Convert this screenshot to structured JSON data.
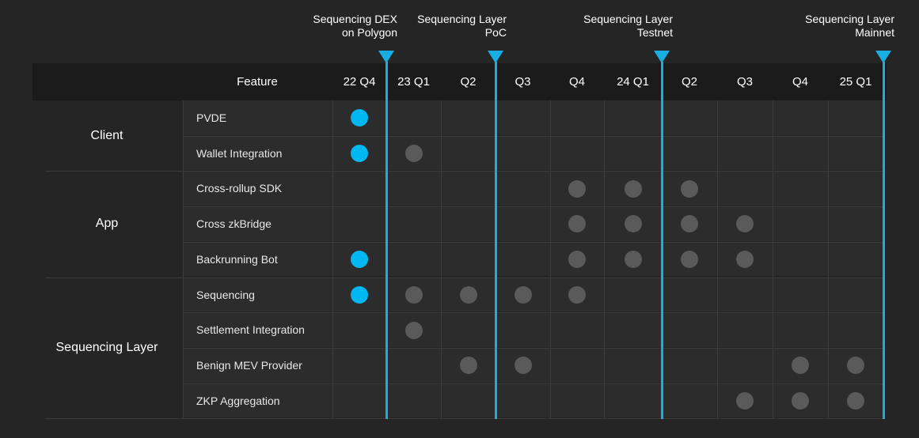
{
  "header": {
    "feature_label": "Feature"
  },
  "columns": [
    "22 Q4",
    "23 Q1",
    "Q2",
    "Q3",
    "Q4",
    "24 Q1",
    "Q2",
    "Q3",
    "Q4",
    "25 Q1"
  ],
  "milestones": [
    {
      "line1": "Sequencing DEX",
      "line2": "on Polygon",
      "after_column": 0
    },
    {
      "line1": "Sequencing Layer",
      "line2": "PoC",
      "after_column": 2
    },
    {
      "line1": "Sequencing Layer",
      "line2": "Testnet",
      "after_column": 5
    },
    {
      "line1": "Sequencing Layer",
      "line2": "Mainnet",
      "after_column": 9
    }
  ],
  "groups": [
    {
      "name": "Client",
      "rows": [
        0,
        1
      ]
    },
    {
      "name": "App",
      "rows": [
        2,
        3,
        4
      ]
    },
    {
      "name": "Sequencing Layer",
      "rows": [
        5,
        6,
        7,
        8
      ]
    }
  ],
  "features": [
    {
      "name": "PVDE",
      "active": [
        0
      ],
      "planned": []
    },
    {
      "name": "Wallet Integration",
      "active": [
        0
      ],
      "planned": [
        1
      ]
    },
    {
      "name": "Cross-rollup SDK",
      "active": [],
      "planned": [
        4,
        5,
        6
      ]
    },
    {
      "name": "Cross zkBridge",
      "active": [],
      "planned": [
        4,
        5,
        6,
        7
      ]
    },
    {
      "name": "Backrunning Bot",
      "active": [
        0
      ],
      "planned": [
        4,
        5,
        6,
        7
      ]
    },
    {
      "name": "Sequencing",
      "active": [
        0
      ],
      "planned": [
        1,
        2,
        3,
        4
      ]
    },
    {
      "name": "Settlement Integration",
      "active": [],
      "planned": [
        1
      ]
    },
    {
      "name": "Benign MEV Provider",
      "active": [],
      "planned": [
        2,
        3,
        8,
        9
      ]
    },
    {
      "name": "ZKP Aggregation",
      "active": [],
      "planned": [
        7,
        8,
        9
      ]
    }
  ],
  "colors": {
    "background": "#252525",
    "header": "#1b1b1b",
    "active": "#00b7f1",
    "planned": "#5a5a5a",
    "milestone": "#17afe3"
  }
}
